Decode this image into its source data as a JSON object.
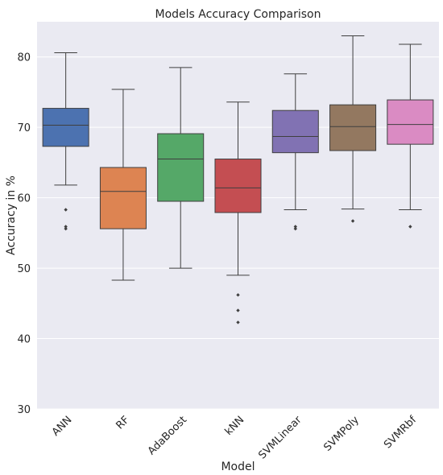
{
  "chart_data": {
    "type": "boxplot",
    "title": "Models Accuracy Comparison",
    "xlabel": "Model",
    "ylabel": "Accuracy in %",
    "ylim": [
      30,
      85
    ],
    "yticks": [
      30,
      40,
      50,
      60,
      70,
      80
    ],
    "grid": true,
    "legend": "none",
    "background": "#eaeaf2",
    "categories": [
      "ANN",
      "RF",
      "AdaBoost",
      "kNN",
      "SVMLinear",
      "SVMPoly",
      "SVMRbf"
    ],
    "colors": [
      "#4c72b0",
      "#dd8452",
      "#55a868",
      "#c44e52",
      "#8172b3",
      "#937860",
      "#da8bc3"
    ],
    "boxes": [
      {
        "whisker_low": 61.8,
        "q1": 67.3,
        "median": 70.3,
        "q3": 72.7,
        "whisker_high": 80.6,
        "outliers": [
          58.3,
          55.9,
          55.6
        ]
      },
      {
        "whisker_low": 48.3,
        "q1": 55.6,
        "median": 60.9,
        "q3": 64.3,
        "whisker_high": 75.4,
        "outliers": []
      },
      {
        "whisker_low": 50.0,
        "q1": 59.5,
        "median": 65.5,
        "q3": 69.1,
        "whisker_high": 78.5,
        "outliers": []
      },
      {
        "whisker_low": 49.0,
        "q1": 57.9,
        "median": 61.4,
        "q3": 65.5,
        "whisker_high": 73.6,
        "outliers": [
          46.2,
          44.0,
          42.3
        ]
      },
      {
        "whisker_low": 58.3,
        "q1": 66.4,
        "median": 68.7,
        "q3": 72.4,
        "whisker_high": 77.6,
        "outliers": [
          55.9,
          55.6
        ]
      },
      {
        "whisker_low": 58.4,
        "q1": 66.7,
        "median": 70.1,
        "q3": 73.2,
        "whisker_high": 83.0,
        "outliers": [
          56.7
        ]
      },
      {
        "whisker_low": 58.3,
        "q1": 67.6,
        "median": 70.4,
        "q3": 73.9,
        "whisker_high": 81.8,
        "outliers": [
          55.9
        ]
      }
    ]
  }
}
